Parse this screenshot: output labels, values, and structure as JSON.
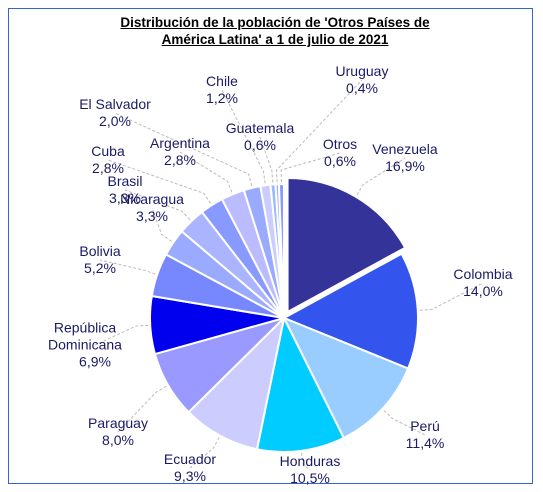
{
  "chart_data": {
    "type": "pie",
    "title": "Distribución de la población de 'Otros Países de América Latina' a 1 de julio de 2021",
    "categories": [
      "Venezuela",
      "Colombia",
      "Perú",
      "Honduras",
      "Ecuador",
      "Paraguay",
      "República Dominicana",
      "Bolivia",
      "Nicaragua",
      "Brasil",
      "Cuba",
      "Argentina",
      "El Salvador",
      "Chile",
      "Guatemala",
      "Uruguay",
      "Otros"
    ],
    "values": [
      16.9,
      14.0,
      11.4,
      10.5,
      9.3,
      8.0,
      6.9,
      5.2,
      3.3,
      3.3,
      2.8,
      2.8,
      2.0,
      1.2,
      0.6,
      0.4,
      0.6
    ],
    "value_labels": [
      "16,9%",
      "14,0%",
      "11,4%",
      "10,5%",
      "9,3%",
      "8,0%",
      "6,9%",
      "5,2%",
      "3,3%",
      "3,3%",
      "2,8%",
      "2,8%",
      "2,0%",
      "1,2%",
      "0,6%",
      "0,4%",
      "0,6%"
    ],
    "colors": [
      "#333399",
      "#3355ee",
      "#99ccff",
      "#00ccff",
      "#ccccff",
      "#9999ff",
      "#0000ee",
      "#7788ff",
      "#99aaff",
      "#aab4ff",
      "#8899ff",
      "#bbbbff",
      "#99aaff",
      "#ccccff",
      "#99bbff",
      "#aaaaff",
      "#8899ff"
    ]
  }
}
